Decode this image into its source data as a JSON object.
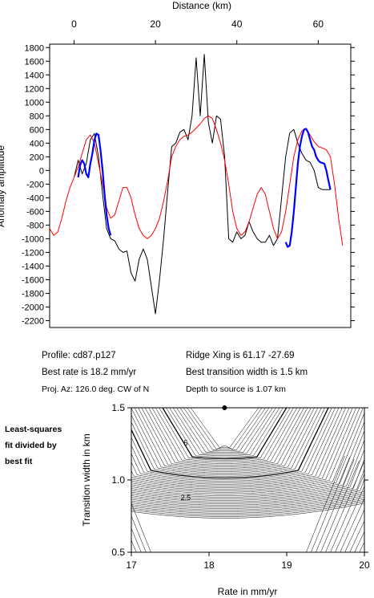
{
  "chart_data": [
    {
      "type": "line",
      "title": "",
      "xlabel": "Distance (km)",
      "ylabel": "Anomaly amplitude",
      "x_ticks": [
        0,
        20,
        40,
        60
      ],
      "y_ticks": [
        1800,
        1600,
        1400,
        1200,
        1000,
        800,
        600,
        400,
        200,
        0,
        -200,
        -400,
        -600,
        -800,
        -1000,
        -1200,
        -1400,
        -1600,
        -1800,
        -2000,
        -2200
      ],
      "xlim": [
        -6,
        68
      ],
      "ylim": [
        -2300,
        1850
      ],
      "grid": false,
      "series": [
        {
          "color": "#000000",
          "x": [
            0,
            1,
            2,
            3,
            4,
            5,
            6,
            7,
            8,
            9,
            10,
            11,
            12,
            13,
            14,
            15,
            16,
            17,
            18,
            19,
            20,
            21,
            22,
            23,
            24,
            25,
            26,
            27,
            28,
            29,
            30,
            31,
            32,
            33,
            34,
            35,
            36,
            37,
            38,
            39,
            40,
            41,
            42,
            43,
            44,
            45,
            46,
            47,
            48,
            49,
            50,
            51,
            52,
            53,
            54,
            55,
            56,
            57,
            58,
            59,
            60,
            61,
            62,
            63
          ],
          "values": [
            -100,
            150,
            -50,
            100,
            450,
            540,
            200,
            -350,
            -850,
            -1000,
            -1030,
            -1150,
            -1200,
            -1180,
            -1500,
            -1620,
            -1300,
            -1150,
            -1300,
            -1700,
            -2100,
            -1600,
            -1000,
            -300,
            350,
            400,
            560,
            600,
            450,
            800,
            1650,
            800,
            1700,
            700,
            400,
            800,
            750,
            200,
            -1000,
            -1050,
            -900,
            -1000,
            -950,
            -750,
            -900,
            -1000,
            -1050,
            -1050,
            -950,
            -1100,
            -1000,
            -400,
            200,
            550,
            600,
            400,
            250,
            150,
            120,
            0,
            -250,
            -280,
            -280,
            -280
          ]
        },
        {
          "color": "#ff0000",
          "x": [
            -6,
            -5,
            -4,
            -3,
            -2,
            -1,
            0,
            1,
            2,
            3,
            4,
            5,
            6,
            7,
            8,
            9,
            10,
            11,
            12,
            13,
            14,
            15,
            16,
            17,
            18,
            19,
            20,
            21,
            22,
            23,
            24,
            25,
            26,
            27,
            28,
            29,
            30,
            31,
            32,
            33,
            34,
            35,
            36,
            37,
            38,
            39,
            40,
            41,
            42,
            43,
            44,
            45,
            46,
            47,
            48,
            49,
            50,
            51,
            52,
            53,
            54,
            55,
            56,
            57,
            58,
            59,
            60,
            61,
            62,
            63,
            64,
            65,
            66
          ],
          "values": [
            -850,
            -950,
            -900,
            -700,
            -450,
            -250,
            -100,
            50,
            250,
            450,
            520,
            400,
            100,
            -200,
            -550,
            -700,
            -650,
            -450,
            -250,
            -250,
            -400,
            -650,
            -850,
            -950,
            -1000,
            -950,
            -850,
            -700,
            -450,
            -150,
            200,
            350,
            450,
            500,
            520,
            560,
            620,
            680,
            760,
            800,
            760,
            600,
            400,
            150,
            -200,
            -600,
            -850,
            -950,
            -900,
            -750,
            -550,
            -350,
            -250,
            -350,
            -600,
            -850,
            -1000,
            -900,
            -600,
            -200,
            200,
            450,
            580,
            600,
            520,
            420,
            350,
            330,
            300,
            200,
            -200,
            -700,
            -1100
          ]
        },
        {
          "color": "#0000ff",
          "x": [
            1,
            1.5,
            2,
            2.5,
            3,
            3.5,
            4,
            4.5,
            5,
            5.5,
            6,
            6.5,
            7,
            7.5,
            8,
            8.5,
            9
          ],
          "values": [
            -100,
            80,
            150,
            100,
            -50,
            -100,
            100,
            250,
            450,
            540,
            520,
            300,
            0,
            -350,
            -650,
            -850,
            -950
          ]
        },
        {
          "color": "#0000ff",
          "x": [
            52,
            52.5,
            53,
            53.5,
            54,
            54.5,
            55,
            55.5,
            56,
            56.5,
            57,
            57.5,
            58,
            58.5,
            59,
            59.5,
            60,
            60.5,
            61,
            61.5,
            62,
            62.5,
            63
          ],
          "values": [
            -1050,
            -1120,
            -1100,
            -900,
            -600,
            -250,
            100,
            350,
            500,
            600,
            610,
            560,
            450,
            350,
            300,
            200,
            150,
            120,
            110,
            100,
            0,
            -150,
            -280
          ]
        }
      ]
    },
    {
      "type": "heatmap",
      "xlabel": "Rate in mm/yr",
      "ylabel": "Transition width in km",
      "x_ticks": [
        17,
        18,
        19,
        20
      ],
      "y_ticks": [
        1.5,
        1.0,
        0.5
      ],
      "xlim": [
        17,
        20
      ],
      "ylim": [
        0.5,
        1.5
      ],
      "grid": false,
      "best_fit_point": {
        "x": 18.2,
        "y": 1.5
      },
      "contour_labels": [
        {
          "text": "5",
          "x": 17.7,
          "y": 1.24
        },
        {
          "text": "2.5",
          "x": 17.7,
          "y": 0.86
        }
      ]
    }
  ],
  "info": {
    "profile": "Profile: cd87.p127",
    "ridge": "Ridge Xing is 61.17 -27.69",
    "rate": "Best rate is 18.2 mm/yr",
    "transition": "Best transition width is 1.5 km",
    "azimuth": "Proj. Az: 126.0 deg. CW of N",
    "depth": "Depth to source is   1.07 km"
  },
  "side_text": [
    "Least-squares",
    "fit divided by",
    "best fit"
  ]
}
